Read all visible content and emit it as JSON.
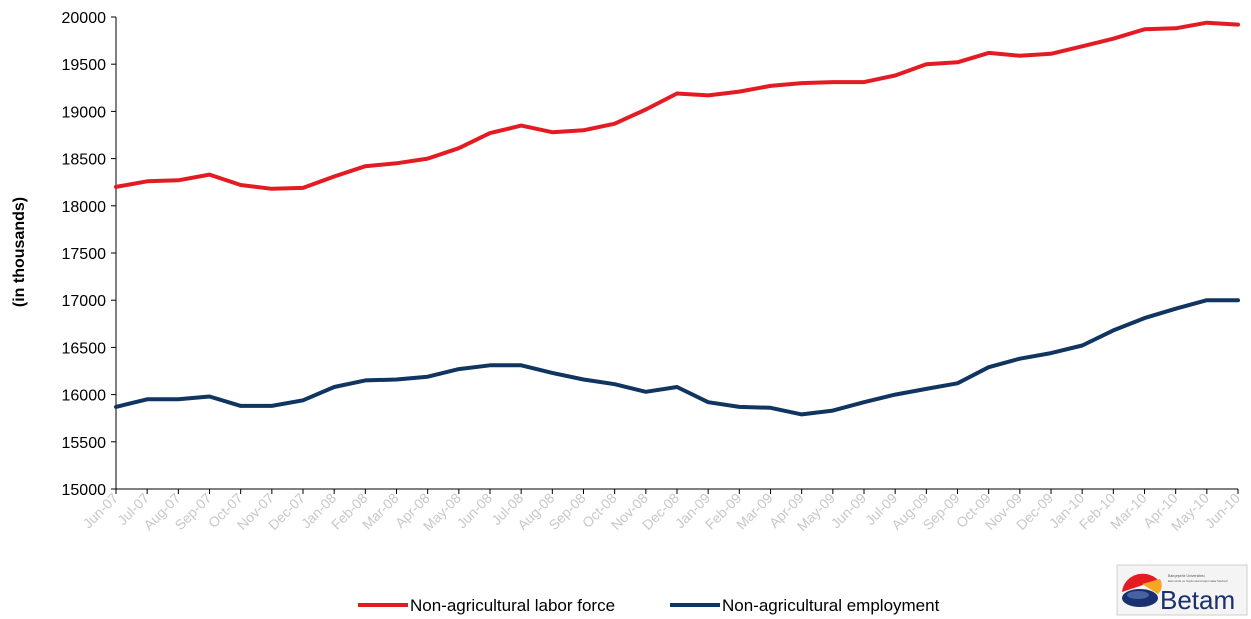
{
  "chart_data": {
    "type": "line",
    "title": "",
    "xlabel": "",
    "ylabel": "(in thousands)",
    "ylim": [
      15000,
      20000
    ],
    "yticks": [
      15000,
      15500,
      16000,
      16500,
      17000,
      17500,
      18000,
      18500,
      19000,
      19500,
      20000
    ],
    "grid": false,
    "legend_position": "bottom",
    "categories": [
      "Jun-07",
      "Jul-07",
      "Aug-07",
      "Sep-07",
      "Oct-07",
      "Nov-07",
      "Dec-07",
      "Jan-08",
      "Feb-08",
      "Mar-08",
      "Apr-08",
      "May-08",
      "Jun-08",
      "Jul-08",
      "Aug-08",
      "Sep-08",
      "Oct-08",
      "Nov-08",
      "Dec-08",
      "Jan-09",
      "Feb-09",
      "Mar-09",
      "Apr-09",
      "May-09",
      "Jun-09",
      "Jul-09",
      "Aug-09",
      "Sep-09",
      "Oct-09",
      "Nov-09",
      "Dec-09",
      "Jan-10",
      "Feb-10",
      "Mar-10",
      "Apr-10",
      "May-10",
      "Jun-10"
    ],
    "series": [
      {
        "name": "Non-agricultural labor force",
        "color": "#e31b23",
        "values": [
          18200,
          18260,
          18270,
          18330,
          18220,
          18180,
          18190,
          18310,
          18420,
          18450,
          18500,
          18610,
          18770,
          18850,
          18780,
          18800,
          18870,
          19020,
          19190,
          19170,
          19210,
          19270,
          19300,
          19310,
          19310,
          19380,
          19500,
          19520,
          19620,
          19590,
          19610,
          19690,
          19770,
          19870,
          19880,
          19940,
          19920
        ]
      },
      {
        "name": "Non-agricultural employment",
        "color": "#0f3560",
        "values": [
          15870,
          15950,
          15950,
          15980,
          15880,
          15880,
          15940,
          16080,
          16150,
          16160,
          16190,
          16270,
          16310,
          16310,
          16230,
          16160,
          16110,
          16030,
          16080,
          15920,
          15870,
          15860,
          15790,
          15830,
          15920,
          16000,
          16060,
          16120,
          16290,
          16380,
          16440,
          16520,
          16680,
          16810,
          16910,
          17000,
          17000
        ]
      }
    ]
  },
  "logo": {
    "word": "Betam",
    "tagline_1": "Bahçeşehir Üniversitesi",
    "tagline_2": "Ekonomik ve Toplumsal Araştırmalar Merkezi",
    "color_red": "#e31b23",
    "color_blue": "#1a2f6e",
    "color_orange": "#f5a623"
  }
}
